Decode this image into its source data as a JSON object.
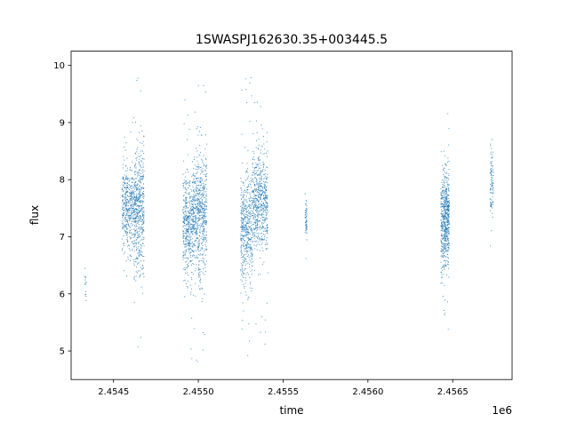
{
  "chart_data": {
    "type": "scatter",
    "title": "1SWASPJ162630.35+003445.5",
    "xlabel": "time",
    "ylabel": "flux",
    "x_offset_label": "1e6",
    "xlim": [
      2.45425,
      2.45685
    ],
    "ylim": [
      4.5,
      10.25
    ],
    "x_ticks": [
      2.4545,
      2.455,
      2.4555,
      2.456,
      2.4565
    ],
    "x_tick_labels": [
      "2.4545",
      "2.4550",
      "2.4555",
      "2.4560",
      "2.4565"
    ],
    "y_ticks": [
      5,
      6,
      7,
      8,
      9,
      10
    ],
    "y_tick_labels": [
      "5",
      "6",
      "7",
      "8",
      "9",
      "10"
    ],
    "grid": false,
    "marker_color": "#1f77b4",
    "series": [
      {
        "clusters": [
          {
            "x": [
              2.45433,
              2.45434
            ],
            "y": [
              6.2
            ],
            "sd": 0.2,
            "n": 14,
            "min": 5.8,
            "max": 6.6
          },
          {
            "x": [
              2.45455,
              2.45462
            ],
            "y": [
              7.5
            ],
            "sd": 0.35,
            "n": 420,
            "min": 6.3,
            "max": 9.2
          },
          {
            "x": [
              2.45462,
              2.45468
            ],
            "y": [
              7.45
            ],
            "sd": 0.55,
            "n": 520,
            "min": 4.75,
            "max": 10.0
          },
          {
            "x": [
              2.45491,
              2.45497
            ],
            "y": [
              7.2
            ],
            "sd": 0.45,
            "n": 450,
            "min": 4.85,
            "max": 9.6
          },
          {
            "x": [
              2.45497,
              2.45505
            ],
            "y": [
              7.4
            ],
            "sd": 0.55,
            "n": 620,
            "min": 4.75,
            "max": 10.0
          },
          {
            "x": [
              2.45525,
              2.45532
            ],
            "y": [
              7.1
            ],
            "sd": 0.5,
            "n": 480,
            "min": 4.8,
            "max": 9.9
          },
          {
            "x": [
              2.45532,
              2.45541
            ],
            "y": [
              7.6
            ],
            "sd": 0.45,
            "n": 600,
            "min": 5.0,
            "max": 9.4
          },
          {
            "x": [
              2.45563,
              2.45564
            ],
            "y": [
              7.3
            ],
            "sd": 0.18,
            "n": 60,
            "min": 6.6,
            "max": 7.75
          },
          {
            "x": [
              2.45643,
              2.45645
            ],
            "y": [
              7.2
            ],
            "sd": 0.45,
            "n": 200,
            "min": 5.6,
            "max": 8.5
          },
          {
            "x": [
              2.45645,
              2.45648
            ],
            "y": [
              7.35
            ],
            "sd": 0.4,
            "n": 420,
            "min": 5.3,
            "max": 9.7
          },
          {
            "x": [
              2.45672,
              2.45674
            ],
            "y": [
              7.9
            ],
            "sd": 0.3,
            "n": 100,
            "min": 5.0,
            "max": 8.75
          }
        ]
      }
    ]
  }
}
